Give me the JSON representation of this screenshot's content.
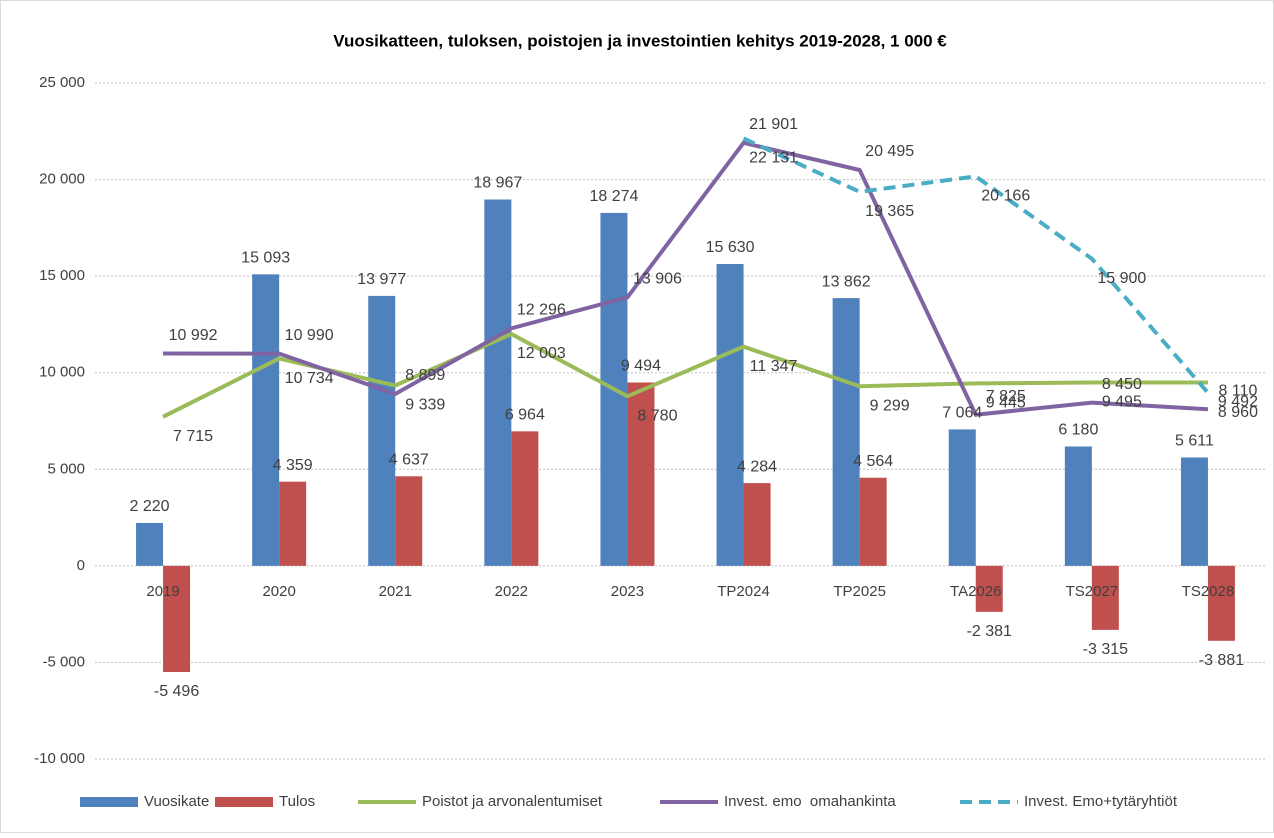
{
  "chart_data": {
    "type": "bar",
    "title": "Vuosikatteen, tuloksen, poistojen ja investointien kehitys 2019-2028, 1 000 €",
    "categories": [
      "2019",
      "2020",
      "2021",
      "2022",
      "2023",
      "TP2024",
      "TP2025",
      "TA2026",
      "TS2027",
      "TS2028"
    ],
    "series": [
      {
        "name": "Vuosikate",
        "color": "#4f81bd",
        "kind": "bar",
        "values": [
          2220,
          15093,
          13977,
          18967,
          18274,
          15630,
          13862,
          7064,
          6180,
          5611
        ],
        "value_labels": [
          "2 220",
          "15 093",
          "13 977",
          "18 967",
          "18 274",
          "15 630",
          "13 862",
          "7 064",
          "6 180",
          "5 611"
        ]
      },
      {
        "name": "Tulos",
        "color": "#c0504d",
        "kind": "bar",
        "values": [
          -5496,
          4359,
          4637,
          6964,
          9494,
          4284,
          4564,
          -2381,
          -3315,
          -3881
        ],
        "value_labels": [
          "-5 496",
          "4 359",
          "4 637",
          "6 964",
          "9 494",
          "4 284",
          "4 564",
          "-2 381",
          "-3 315",
          "-3 881"
        ]
      },
      {
        "name": "Poistot ja arvonalentumiset",
        "color": "#9bbb59",
        "kind": "line",
        "values": [
          7715,
          10734,
          9339,
          12003,
          8780,
          11347,
          9299,
          9445,
          9495,
          9492
        ],
        "value_labels": [
          "7 715",
          "10 734",
          "9 339",
          "12 003",
          "8 780",
          "11 347",
          "9 299",
          "9 445",
          "9 495",
          "9 492"
        ]
      },
      {
        "name": "Invest. emo  omahankinta",
        "color": "#8064a2",
        "kind": "line",
        "values": [
          10992,
          10990,
          8899,
          12296,
          13906,
          21901,
          20495,
          7825,
          8450,
          8110
        ],
        "value_labels": [
          "10 992",
          "10 990",
          "8 899",
          "12 296",
          "13 906",
          "21 901",
          "20 495",
          "7 825",
          "8 450",
          "8 110"
        ]
      },
      {
        "name": "Invest. Emo+tytäryhtiöt",
        "color": "#4bacc6",
        "kind": "line",
        "dashed": true,
        "values": [
          null,
          null,
          null,
          null,
          null,
          22131,
          19365,
          20166,
          15900,
          8960
        ],
        "value_labels": [
          null,
          null,
          null,
          null,
          null,
          "22 131",
          "19 365",
          "20 166",
          "15 900",
          "8 960"
        ]
      }
    ],
    "ylim": [
      -10000,
      25000
    ],
    "yticks": [
      {
        "value": -10000,
        "label": "-10 000"
      },
      {
        "value": -5000,
        "label": "-5 000"
      },
      0,
      {
        "value": 5000,
        "label": "5 000"
      },
      {
        "value": 10000,
        "label": "10 000"
      },
      {
        "value": 15000,
        "label": "15 000"
      },
      {
        "value": 20000,
        "label": "20 000"
      },
      {
        "value": 25000,
        "label": "25 000"
      }
    ],
    "grid": true,
    "legend": "bottom"
  }
}
